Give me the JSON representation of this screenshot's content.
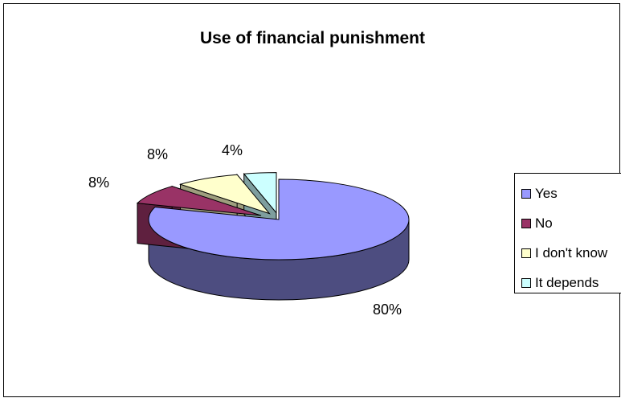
{
  "chart_data": {
    "type": "pie",
    "title": "Use of financial punishment",
    "categories": [
      "Yes",
      "No",
      "I don't know",
      "It depends"
    ],
    "values": [
      80,
      8,
      8,
      4
    ],
    "labels": [
      "80%",
      "8%",
      "8%",
      "4%"
    ],
    "colors": [
      "#9999ff",
      "#993366",
      "#ffffcc",
      "#ccffff"
    ],
    "legend_position": "right",
    "exploded": true,
    "three_d": true
  }
}
